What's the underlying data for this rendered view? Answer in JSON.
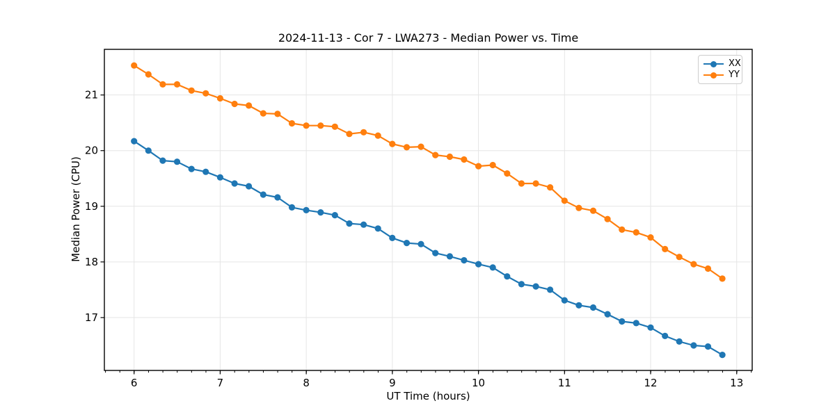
{
  "chart_data": {
    "type": "line",
    "title": "2024-11-13 - Cor 7 - LWA273 - Median Power vs. Time",
    "xlabel": "UT Time (hours)",
    "ylabel": "Median Power (CPU)",
    "xlim": [
      5.655,
      13.18
    ],
    "ylim": [
      16.05,
      21.82
    ],
    "x_ticks": [
      6,
      7,
      8,
      9,
      10,
      11,
      12,
      13
    ],
    "x_minor_tick_interval": 0.1667,
    "y_ticks": [
      17,
      18,
      19,
      20,
      21
    ],
    "grid": true,
    "grid_color": "#e5e5e5",
    "legend_position": "upper right",
    "x": [
      6.0,
      6.167,
      6.333,
      6.5,
      6.667,
      6.833,
      7.0,
      7.167,
      7.333,
      7.5,
      7.667,
      7.833,
      8.0,
      8.167,
      8.333,
      8.5,
      8.667,
      8.833,
      9.0,
      9.167,
      9.333,
      9.5,
      9.667,
      9.833,
      10.0,
      10.167,
      10.333,
      10.5,
      10.667,
      10.833,
      11.0,
      11.167,
      11.333,
      11.5,
      11.667,
      11.833,
      12.0,
      12.167,
      12.333,
      12.5,
      12.667,
      12.833
    ],
    "series": [
      {
        "name": "XX",
        "color": "#1f77b4",
        "values": [
          20.17,
          20.0,
          19.82,
          19.8,
          19.67,
          19.62,
          19.52,
          19.41,
          19.36,
          19.21,
          19.16,
          18.98,
          18.93,
          18.89,
          18.84,
          18.69,
          18.67,
          18.6,
          18.43,
          18.34,
          18.32,
          18.16,
          18.1,
          18.03,
          17.96,
          17.9,
          17.74,
          17.6,
          17.56,
          17.5,
          17.31,
          17.22,
          17.18,
          17.06,
          16.93,
          16.9,
          16.82,
          16.67,
          16.57,
          16.5,
          16.48,
          16.33
        ]
      },
      {
        "name": "YY",
        "color": "#ff7f0e",
        "values": [
          21.53,
          21.37,
          21.19,
          21.19,
          21.08,
          21.03,
          20.94,
          20.84,
          20.81,
          20.67,
          20.66,
          20.49,
          20.45,
          20.45,
          20.43,
          20.3,
          20.33,
          20.27,
          20.12,
          20.06,
          20.07,
          19.92,
          19.89,
          19.84,
          19.72,
          19.74,
          19.59,
          19.41,
          19.41,
          19.34,
          19.1,
          18.97,
          18.92,
          18.77,
          18.58,
          18.53,
          18.44,
          18.23,
          18.09,
          17.96,
          17.88,
          17.7
        ]
      }
    ]
  }
}
